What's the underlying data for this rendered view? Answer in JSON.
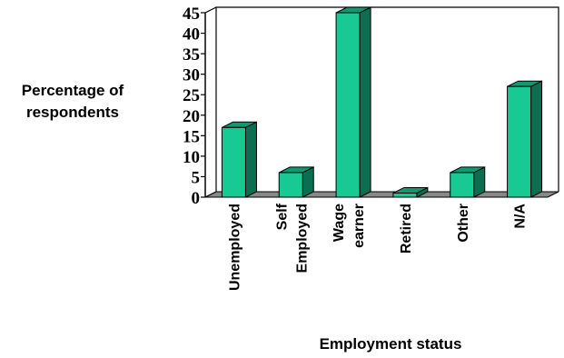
{
  "chart_data": {
    "type": "bar",
    "categories": [
      "Unemployed",
      "Self Employed",
      "Wage earner",
      "Retired",
      "Other",
      "N/A"
    ],
    "category_lines": [
      [
        "Unemployed"
      ],
      [
        "Self",
        "Employed"
      ],
      [
        "Wage",
        "earner"
      ],
      [
        "Retired"
      ],
      [
        "Other"
      ],
      [
        "N/A"
      ]
    ],
    "values": [
      17,
      6,
      45,
      1,
      6,
      27
    ],
    "ylabel_lines": [
      "Percentage of",
      "respondents"
    ],
    "xlabel": "Employment status",
    "ylim": [
      0,
      45
    ],
    "yticks": [
      0,
      5,
      10,
      15,
      20,
      25,
      30,
      35,
      40,
      45
    ],
    "grid": false,
    "style": "3d",
    "colors": {
      "bar_front": "#18c994",
      "bar_side": "#0c6e50",
      "bar_top": "#10986f",
      "floor": "#888888"
    }
  }
}
